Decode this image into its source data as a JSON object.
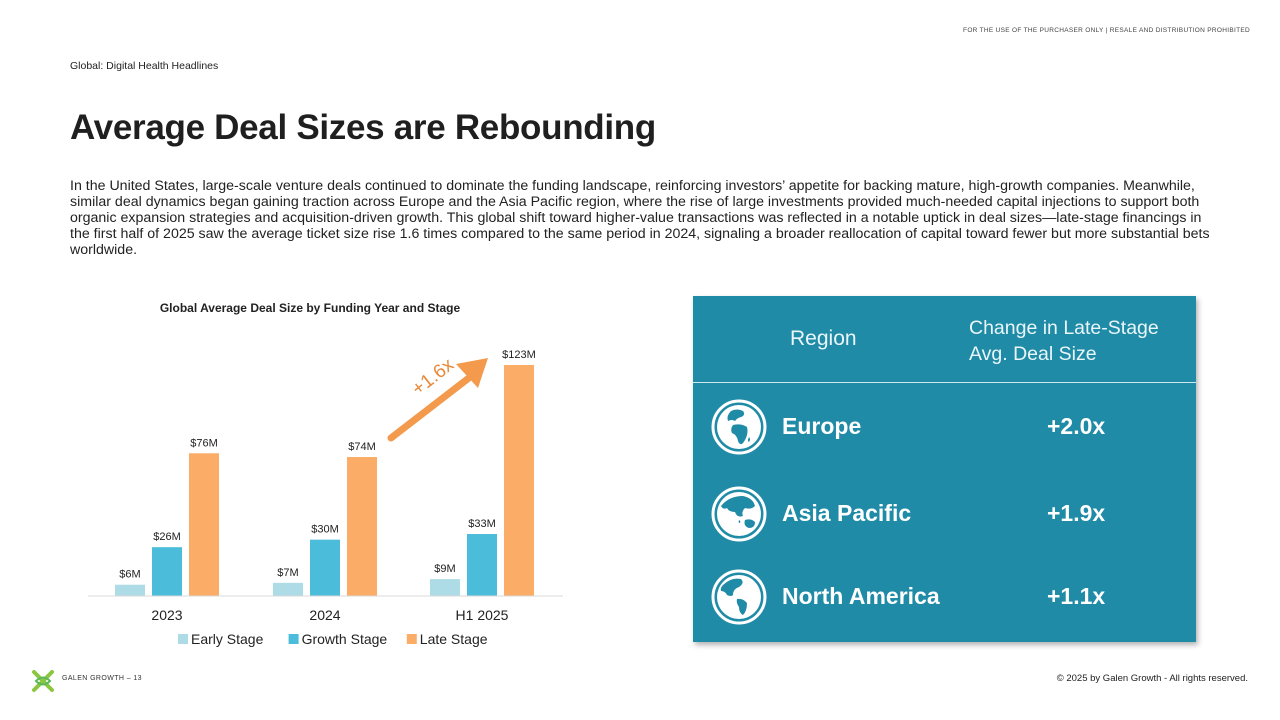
{
  "header": {
    "disclaimer": "FOR THE USE OF THE PURCHASER ONLY | RESALE AND DISTRIBUTION PROHIBITED",
    "section": "Global: Digital Health Headlines",
    "title": "Average Deal Sizes are Rebounding",
    "body": "In the United States, large-scale venture deals continued to dominate the funding landscape, reinforcing investors’ appetite for backing mature, high-growth companies. Meanwhile, similar deal dynamics began gaining traction across Europe and the Asia Pacific region, where the rise of large investments provided much-needed capital injections to support both organic expansion strategies and acquisition-driven growth. This global shift toward higher-value transactions was reflected in a notable uptick in deal sizes—late-stage financings in the first half of 2025 saw the average ticket size rise 1.6 times compared to the same period in 2024, signaling a broader reallocation of capital toward fewer but more substantial bets worldwide."
  },
  "chart_data": {
    "type": "bar",
    "title": "Global Average Deal Size by Funding Year and Stage",
    "categories": [
      "2023",
      "2024",
      "H1 2025"
    ],
    "series": [
      {
        "name": "Early Stage",
        "color": "#aedce6",
        "values": [
          6,
          7,
          9
        ],
        "labels": [
          "$6M",
          "$7M",
          "$9M"
        ]
      },
      {
        "name": "Growth Stage",
        "color": "#4bbcd9",
        "values": [
          26,
          30,
          33
        ],
        "labels": [
          "$26M",
          "$30M",
          "$33M"
        ]
      },
      {
        "name": "Late Stage",
        "color": "#fbac67",
        "values": [
          76,
          74,
          123
        ],
        "labels": [
          "$76M",
          "$74M",
          "$123M"
        ]
      }
    ],
    "annotation": {
      "text": "+1.6x",
      "color": "#f39a4d"
    },
    "legend": "bottom",
    "grid": false,
    "ylim": [
      0,
      123
    ]
  },
  "region_table": {
    "header_region": "Region",
    "header_change": "Change in Late-Stage Avg. Deal Size",
    "rows": [
      {
        "region": "Europe",
        "change": "+2.0x",
        "icon": "globe-europe-icon"
      },
      {
        "region": "Asia Pacific",
        "change": "+1.9x",
        "icon": "globe-asia-icon"
      },
      {
        "region": "North America",
        "change": "+1.1x",
        "icon": "globe-americas-icon"
      }
    ]
  },
  "footer": {
    "brand": "GALEN GROWTH – 13",
    "copyright": "© 2025 by Galen Growth  - All rights reserved."
  }
}
